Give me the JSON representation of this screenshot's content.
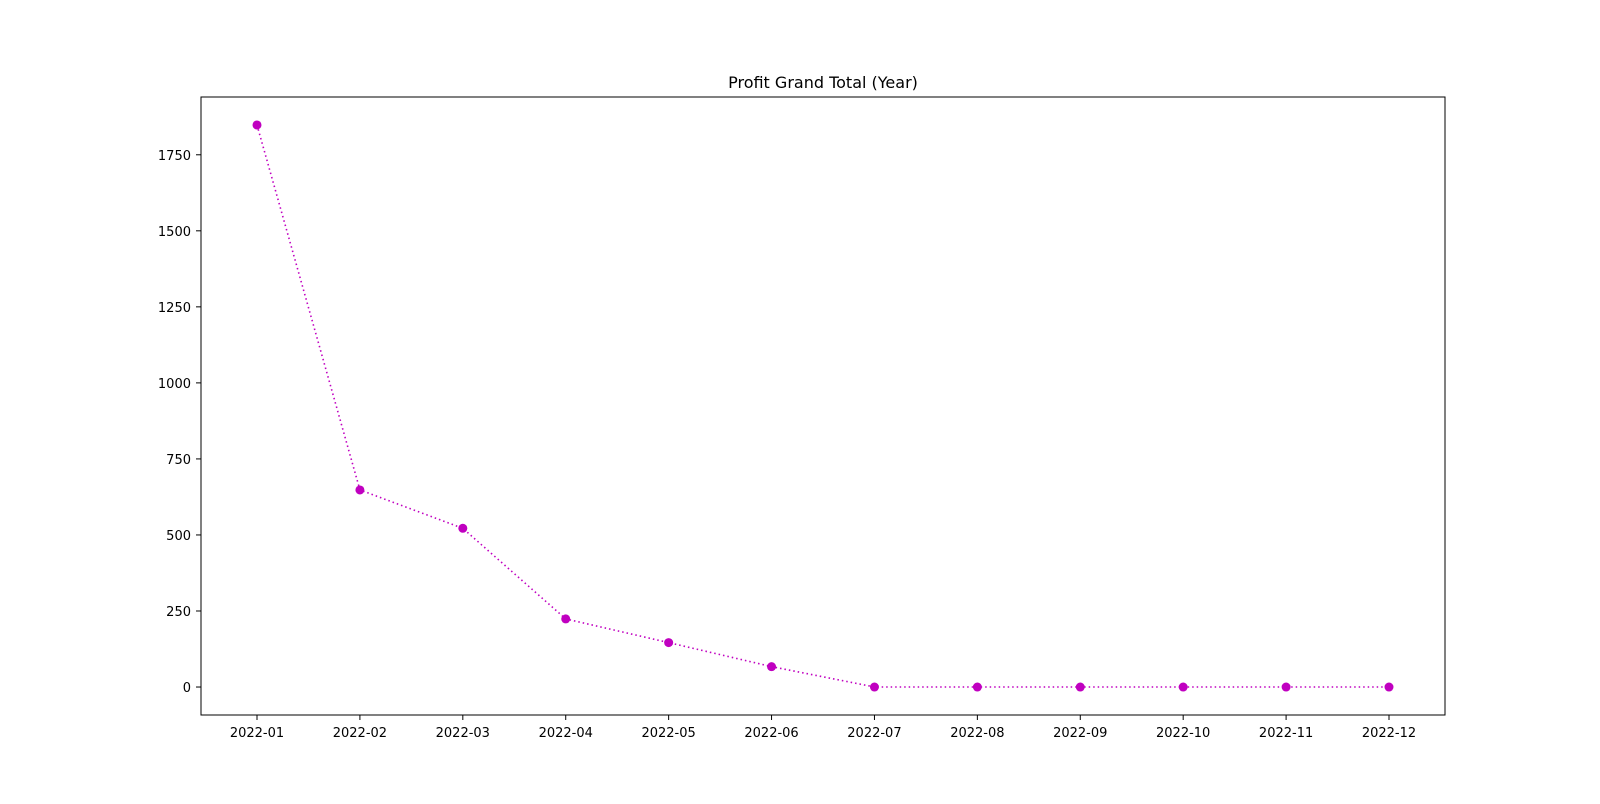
{
  "chart_data": {
    "type": "line",
    "title": "Profit Grand Total (Year)",
    "xlabel": "",
    "ylabel": "",
    "categories": [
      "2022-01",
      "2022-02",
      "2022-03",
      "2022-04",
      "2022-05",
      "2022-06",
      "2022-07",
      "2022-08",
      "2022-09",
      "2022-10",
      "2022-11",
      "2022-12"
    ],
    "series": [
      {
        "values": [
          1848,
          648,
          522,
          224,
          146,
          67,
          0,
          0,
          0,
          0,
          0,
          0
        ],
        "color": "#c000c0",
        "line_style": "dotted",
        "marker": "circle"
      }
    ],
    "y_ticks": [
      0,
      250,
      500,
      750,
      1000,
      1250,
      1500,
      1750
    ],
    "ylim": [
      -92,
      1940
    ],
    "grid": false,
    "legend": "none"
  }
}
